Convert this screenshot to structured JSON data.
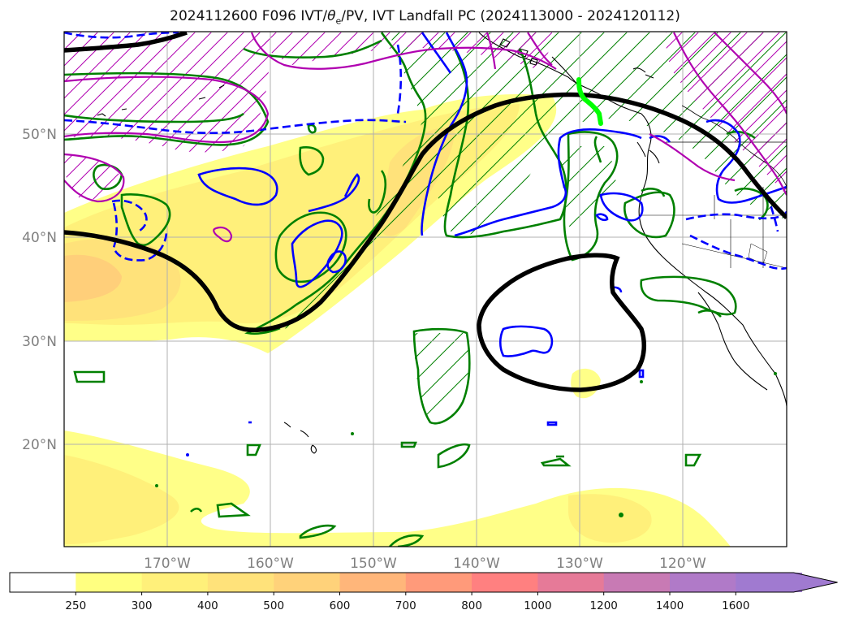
{
  "title": "2024112600 F096 IVT/θe/PV, IVT Landfall PC (2024113000 - 2024120112)",
  "title_parts": {
    "prefix": "2024112600 F096 IVT/",
    "theta_symbol": "θ",
    "theta_subscript": "e",
    "suffix": "/PV, IVT Landfall PC (2024113000 - 2024120112)"
  },
  "axes": {
    "lat_labels": [
      "50°N",
      "40°N",
      "30°N",
      "20°N"
    ],
    "lon_labels": [
      "170°W",
      "160°W",
      "150°W",
      "140°W",
      "130°W",
      "120°W"
    ],
    "lon_values": [
      -170,
      -160,
      -150,
      -140,
      -130,
      -120
    ],
    "lat_values": [
      50,
      40,
      30,
      20
    ],
    "grid": true
  },
  "colorbar": {
    "levels": [
      "250",
      "300",
      "400",
      "500",
      "600",
      "700",
      "800",
      "1000",
      "1200",
      "1400",
      "1600"
    ],
    "colors": [
      "#ffffff",
      "#ffff80",
      "#fff07a",
      "#ffe27a",
      "#ffd27a",
      "#ffb67a",
      "#ff9a7a",
      "#ff8080",
      "#e67a98",
      "#c87ab4",
      "#b07ac8",
      "#a07ad0"
    ],
    "extend": "max"
  },
  "legend_colors": {
    "ivt_fill": "#ffff66",
    "theta_e_contour": "#008000",
    "pv_contour": "#0000ff",
    "pv_high_contour": "#b000b0",
    "landfall_pc": "#000000",
    "landfall_segment": "#00ff00",
    "coastline": "#000000"
  }
}
